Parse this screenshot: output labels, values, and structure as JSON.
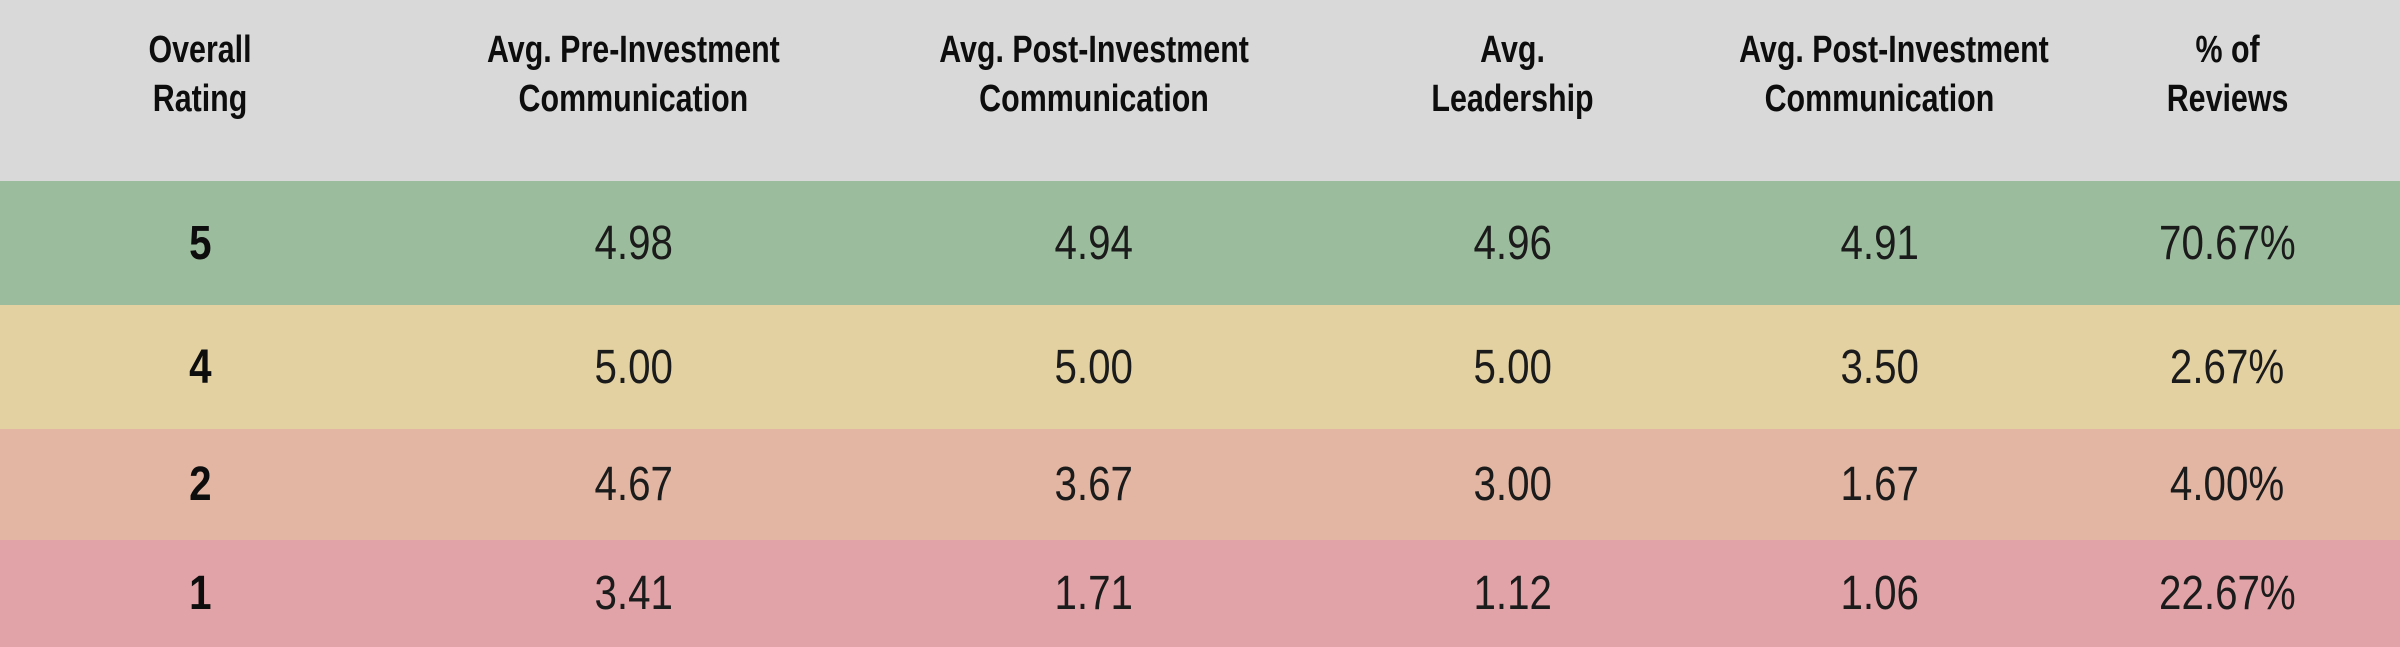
{
  "colors": {
    "header_bg": "#d9d9d9",
    "header_text": "#0d0d0d",
    "value_text": "#1b1b1b",
    "row_green": "#9cbd9d",
    "row_tan": "#e3d1a2",
    "row_salmon": "#e2b6a3",
    "row_pink": "#e2a3a8"
  },
  "table": {
    "columns": [
      {
        "label": "Overall Rating",
        "lines": [
          "Overall",
          "Rating"
        ]
      },
      {
        "label": "Avg. Pre-Investment Communication",
        "lines": [
          "Avg. Pre-Investment",
          "Communication"
        ]
      },
      {
        "label": "Avg. Post-Investment Communication",
        "lines": [
          "Avg. Post-Investment",
          "Communication"
        ]
      },
      {
        "label": "Avg. Leadership",
        "lines": [
          "Avg.",
          "Leadership"
        ]
      },
      {
        "label": "Avg. Post-Investment Communication",
        "lines": [
          "Avg. Post-Investment",
          "Communication"
        ]
      },
      {
        "label": "% of Reviews",
        "lines": [
          "% of",
          "Reviews"
        ]
      }
    ],
    "rows": [
      {
        "row_color": "#9cbd9d",
        "cells": [
          "5",
          "4.98",
          "4.94",
          "4.96",
          "4.91",
          "70.67%"
        ]
      },
      {
        "row_color": "#e3d1a2",
        "cells": [
          "4",
          "5.00",
          "5.00",
          "5.00",
          "3.50",
          "2.67%"
        ]
      },
      {
        "row_color": "#e2b6a3",
        "cells": [
          "2",
          "4.67",
          "3.67",
          "3.00",
          "1.67",
          "4.00%"
        ]
      },
      {
        "row_color": "#e2a3a8",
        "cells": [
          "1",
          "3.41",
          "1.71",
          "1.12",
          "1.06",
          "22.67%"
        ]
      }
    ]
  },
  "chart_data": {
    "type": "table",
    "columns": [
      "Overall Rating",
      "Avg. Pre-Investment Communication",
      "Avg. Post-Investment Communication",
      "Avg. Leadership",
      "Avg. Post-Investment Communication",
      "% of Reviews"
    ],
    "rows": [
      {
        "overall_rating": 5,
        "avg_pre_investment_communication": 4.98,
        "avg_post_investment_communication": 4.94,
        "avg_leadership": 4.96,
        "avg_post_investment_communication_2": 4.91,
        "pct_of_reviews": "70.67%"
      },
      {
        "overall_rating": 4,
        "avg_pre_investment_communication": 5.0,
        "avg_post_investment_communication": 5.0,
        "avg_leadership": 5.0,
        "avg_post_investment_communication_2": 3.5,
        "pct_of_reviews": "2.67%"
      },
      {
        "overall_rating": 2,
        "avg_pre_investment_communication": 4.67,
        "avg_post_investment_communication": 3.67,
        "avg_leadership": 3.0,
        "avg_post_investment_communication_2": 1.67,
        "pct_of_reviews": "4.00%"
      },
      {
        "overall_rating": 1,
        "avg_pre_investment_communication": 3.41,
        "avg_post_investment_communication": 1.71,
        "avg_leadership": 1.12,
        "avg_post_investment_communication_2": 1.06,
        "pct_of_reviews": "22.67%"
      }
    ],
    "row_colors_by_rating": {
      "5": "#9cbd9d",
      "4": "#e3d1a2",
      "2": "#e2b6a3",
      "1": "#e2a3a8"
    },
    "layout": {
      "grid": false,
      "legend": false,
      "header_background": "#d9d9d9"
    }
  }
}
